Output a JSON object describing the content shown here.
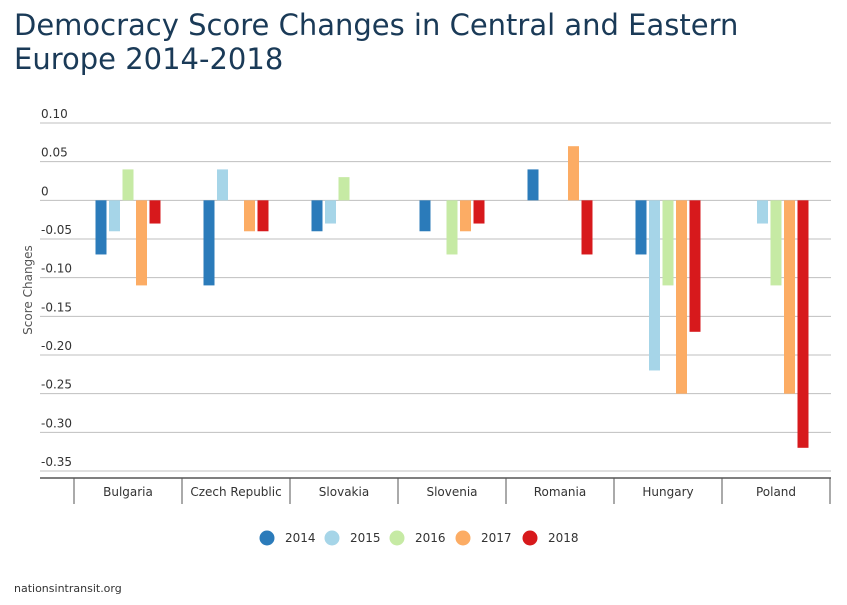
{
  "title": "Democracy Score Changes in Central and Eastern Europe 2014-2018",
  "source": "nationsintransit.org",
  "chart_data": {
    "type": "bar",
    "title": "Democracy Score Changes in Central and Eastern Europe 2014-2018",
    "xlabel": "",
    "ylabel": "Score Changes",
    "ylim": [
      -0.35,
      0.1
    ],
    "ytick_labels": [
      "0.10",
      "0.05",
      "0",
      "-0.05",
      "-0.10",
      "-0.15",
      "-0.20",
      "-0.25",
      "-0.30",
      "-0.35"
    ],
    "ytick_values": [
      0.1,
      0.05,
      0,
      -0.05,
      -0.1,
      -0.15,
      -0.2,
      -0.25,
      -0.3,
      -0.35
    ],
    "grid": true,
    "legend_position": "bottom-center",
    "categories": [
      "Bulgaria",
      "Czech Republic",
      "Slovakia",
      "Slovenia",
      "Romania",
      "Hungary",
      "Poland"
    ],
    "series": [
      {
        "name": "2014",
        "color": "#2b7bba",
        "values": [
          -0.07,
          -0.11,
          -0.04,
          -0.04,
          0.04,
          -0.07,
          0
        ]
      },
      {
        "name": "2015",
        "color": "#a6d5e8",
        "values": [
          -0.04,
          0.04,
          -0.03,
          0,
          0,
          -0.22,
          -0.03
        ]
      },
      {
        "name": "2016",
        "color": "#c6eaa4",
        "values": [
          0.04,
          0,
          0.03,
          -0.07,
          0,
          -0.11,
          -0.11
        ]
      },
      {
        "name": "2017",
        "color": "#fcac64",
        "values": [
          -0.11,
          -0.04,
          0,
          -0.04,
          0.07,
          -0.25,
          -0.25
        ]
      },
      {
        "name": "2018",
        "color": "#d7191c",
        "values": [
          -0.03,
          -0.04,
          0,
          -0.03,
          -0.07,
          -0.17,
          -0.32
        ]
      }
    ]
  }
}
